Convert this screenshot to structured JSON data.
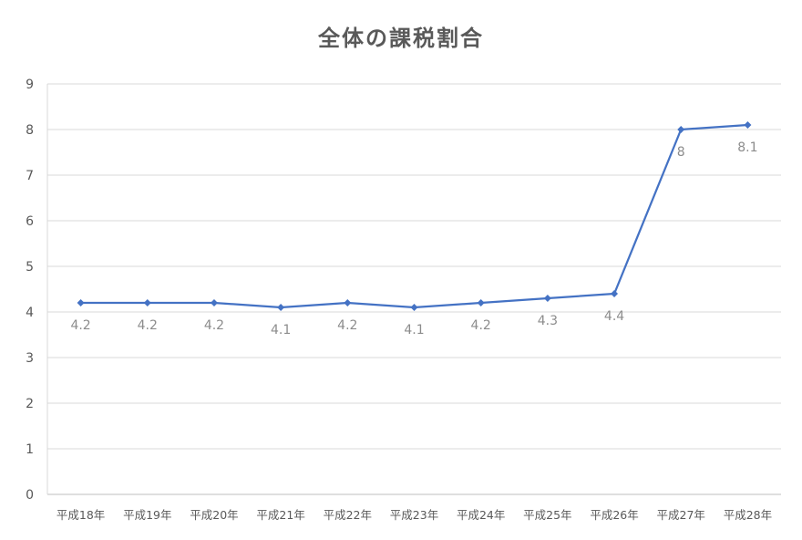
{
  "chart_data": {
    "type": "line",
    "title": "全体の課税割合",
    "categories": [
      "平成18年",
      "平成19年",
      "平成20年",
      "平成21年",
      "平成22年",
      "平成23年",
      "平成24年",
      "平成25年",
      "平成26年",
      "平成27年",
      "平成28年"
    ],
    "series": [
      {
        "values": [
          4.2,
          4.2,
          4.2,
          4.1,
          4.2,
          4.1,
          4.2,
          4.3,
          4.4,
          8,
          8.1
        ],
        "data_labels": [
          "4.2",
          "4.2",
          "4.2",
          "4.1",
          "4.2",
          "4.1",
          "4.2",
          "4.3",
          "4.4",
          "8",
          "8.1"
        ],
        "color": "#4472C4",
        "marker": "diamond"
      }
    ],
    "ylim": [
      0,
      9
    ],
    "yticks": [
      "0",
      "1",
      "2",
      "3",
      "4",
      "5",
      "6",
      "7",
      "8",
      "9"
    ],
    "grid": true,
    "legend": "none",
    "colors": {
      "line": "#4472C4",
      "grid": "#d9d9d9",
      "text": "#595959",
      "data_label": "#8c8c8c"
    }
  }
}
